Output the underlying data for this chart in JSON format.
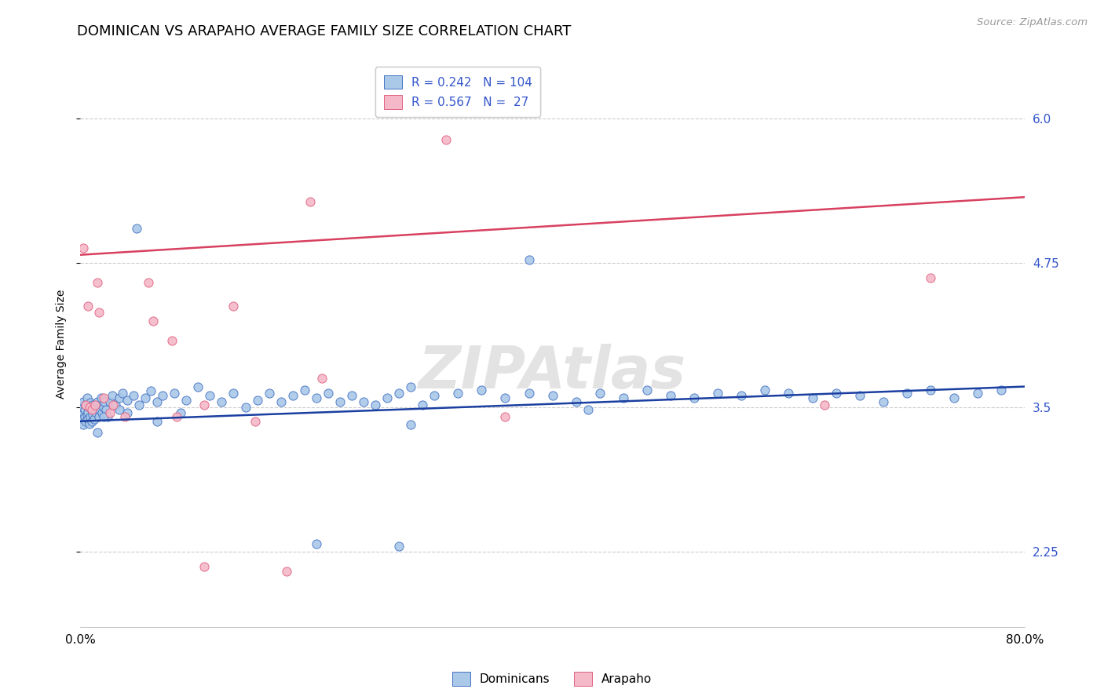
{
  "title": "DOMINICAN VS ARAPAHO AVERAGE FAMILY SIZE CORRELATION CHART",
  "source": "Source: ZipAtlas.com",
  "ylabel": "Average Family Size",
  "yticks": [
    2.25,
    3.5,
    4.75,
    6.0
  ],
  "blue_R": 0.242,
  "blue_N": 104,
  "pink_R": 0.567,
  "pink_N": 27,
  "blue_marker_face": "#aac8e8",
  "blue_marker_edge": "#4472c4",
  "pink_marker_face": "#f4b8c8",
  "pink_marker_edge": "#e06080",
  "blue_line_color": "#1a3fa0",
  "pink_line_color": "#d84060",
  "tick_color": "#3355cc",
  "legend_blue_label": "Dominicans",
  "legend_pink_label": "Arapaho",
  "blue_scatter_x": [
    0.001,
    0.002,
    0.002,
    0.003,
    0.003,
    0.004,
    0.004,
    0.005,
    0.005,
    0.006,
    0.006,
    0.007,
    0.007,
    0.008,
    0.008,
    0.009,
    0.009,
    0.01,
    0.01,
    0.011,
    0.011,
    0.012,
    0.013,
    0.014,
    0.015,
    0.016,
    0.017,
    0.018,
    0.019,
    0.02,
    0.021,
    0.022,
    0.023,
    0.025,
    0.027,
    0.03,
    0.033,
    0.036,
    0.04,
    0.045,
    0.05,
    0.055,
    0.06,
    0.065,
    0.07,
    0.08,
    0.09,
    0.1,
    0.11,
    0.12,
    0.13,
    0.14,
    0.15,
    0.16,
    0.17,
    0.18,
    0.19,
    0.2,
    0.21,
    0.22,
    0.23,
    0.24,
    0.25,
    0.26,
    0.27,
    0.28,
    0.29,
    0.3,
    0.32,
    0.34,
    0.36,
    0.38,
    0.4,
    0.42,
    0.44,
    0.46,
    0.48,
    0.5,
    0.52,
    0.54,
    0.56,
    0.58,
    0.6,
    0.62,
    0.64,
    0.66,
    0.68,
    0.7,
    0.72,
    0.74,
    0.76,
    0.78,
    0.085,
    0.28,
    0.43,
    0.38,
    0.048,
    0.015,
    0.02,
    0.033,
    0.065,
    0.04,
    0.2,
    0.27
  ],
  "blue_scatter_y": [
    3.45,
    3.5,
    3.4,
    3.35,
    3.55,
    3.42,
    3.48,
    3.38,
    3.52,
    3.44,
    3.58,
    3.4,
    3.46,
    3.5,
    3.36,
    3.54,
    3.42,
    3.48,
    3.38,
    3.52,
    3.44,
    3.4,
    3.46,
    3.5,
    3.55,
    3.42,
    3.48,
    3.58,
    3.45,
    3.5,
    3.55,
    3.48,
    3.42,
    3.55,
    3.6,
    3.52,
    3.58,
    3.62,
    3.56,
    3.6,
    3.52,
    3.58,
    3.64,
    3.55,
    3.6,
    3.62,
    3.56,
    3.68,
    3.6,
    3.55,
    3.62,
    3.5,
    3.56,
    3.62,
    3.55,
    3.6,
    3.65,
    3.58,
    3.62,
    3.55,
    3.6,
    3.55,
    3.52,
    3.58,
    3.62,
    3.68,
    3.52,
    3.6,
    3.62,
    3.65,
    3.58,
    3.62,
    3.6,
    3.55,
    3.62,
    3.58,
    3.65,
    3.6,
    3.58,
    3.62,
    3.6,
    3.65,
    3.62,
    3.58,
    3.62,
    3.6,
    3.55,
    3.62,
    3.65,
    3.58,
    3.62,
    3.65,
    3.45,
    3.35,
    3.48,
    4.78,
    5.05,
    3.28,
    3.42,
    3.48,
    3.38,
    3.45,
    2.32,
    2.3
  ],
  "pink_scatter_x": [
    0.003,
    0.005,
    0.007,
    0.008,
    0.01,
    0.013,
    0.016,
    0.02,
    0.025,
    0.028,
    0.038,
    0.058,
    0.082,
    0.105,
    0.13,
    0.148,
    0.175,
    0.205,
    0.062,
    0.015,
    0.31,
    0.36,
    0.105,
    0.63,
    0.72,
    0.078,
    0.195
  ],
  "pink_scatter_y": [
    4.88,
    3.52,
    4.38,
    3.5,
    3.48,
    3.52,
    4.32,
    3.58,
    3.45,
    3.52,
    3.42,
    4.58,
    3.42,
    3.52,
    4.38,
    3.38,
    2.08,
    3.75,
    4.25,
    4.58,
    5.82,
    3.42,
    2.12,
    3.52,
    4.62,
    4.08,
    5.28
  ],
  "blue_trend_x0": 0.0,
  "blue_trend_x1": 0.8,
  "blue_trend_y0": 3.38,
  "blue_trend_y1": 3.68,
  "pink_trend_x0": 0.0,
  "pink_trend_x1": 0.8,
  "pink_trend_y0": 4.82,
  "pink_trend_y1": 5.32,
  "xlim": [
    0.0,
    0.8
  ],
  "ylim": [
    1.6,
    6.5
  ],
  "xtick_positions": [
    0.0,
    0.8
  ],
  "xtick_labels": [
    "0.0%",
    "80.0%"
  ],
  "watermark": "ZIPAtlas",
  "title_fontsize": 13,
  "axis_label_fontsize": 10,
  "tick_fontsize": 11,
  "source_fontsize": 9.5,
  "legend_fontsize": 11,
  "marker_size": 65
}
